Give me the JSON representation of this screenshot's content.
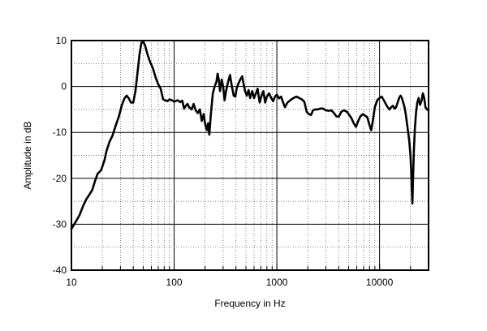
{
  "chart_data": {
    "type": "line",
    "title": "",
    "xlabel": "Frequency in Hz",
    "ylabel": "Amplitude in dB",
    "xscale": "log",
    "xlim": [
      10,
      30000
    ],
    "ylim": [
      -40,
      10
    ],
    "grid": true,
    "x_ticks": [
      {
        "value": 10,
        "label": "10"
      },
      {
        "value": 100,
        "label": "100"
      },
      {
        "value": 1000,
        "label": "1000"
      },
      {
        "value": 10000,
        "label": "10000"
      }
    ],
    "y_ticks": [
      {
        "value": 10,
        "label": "10"
      },
      {
        "value": 0,
        "label": "0"
      },
      {
        "value": -10,
        "label": "-10"
      },
      {
        "value": -20,
        "label": "-20"
      },
      {
        "value": -30,
        "label": "-30"
      },
      {
        "value": -40,
        "label": "-40"
      }
    ],
    "series": [
      {
        "color": "#000000",
        "points": [
          [
            10,
            -31
          ],
          [
            11,
            -29.5
          ],
          [
            12,
            -28
          ],
          [
            13,
            -26
          ],
          [
            14,
            -24.5
          ],
          [
            15,
            -23.5
          ],
          [
            16,
            -22.5
          ],
          [
            17,
            -20.5
          ],
          [
            18,
            -19
          ],
          [
            19.5,
            -18.2
          ],
          [
            21,
            -16
          ],
          [
            22,
            -14
          ],
          [
            23.5,
            -12
          ],
          [
            25,
            -10.8
          ],
          [
            27,
            -8.5
          ],
          [
            29,
            -6.5
          ],
          [
            31,
            -4
          ],
          [
            33,
            -2.5
          ],
          [
            34.5,
            -2
          ],
          [
            36,
            -2.5
          ],
          [
            38,
            -3.5
          ],
          [
            40,
            -3.5
          ],
          [
            42,
            -1
          ],
          [
            44,
            3
          ],
          [
            46,
            7
          ],
          [
            48,
            9.5
          ],
          [
            50,
            9.8
          ],
          [
            52,
            9
          ],
          [
            55,
            7
          ],
          [
            58,
            5.5
          ],
          [
            62,
            4
          ],
          [
            66,
            2
          ],
          [
            70,
            0.5
          ],
          [
            74,
            -0.5
          ],
          [
            78,
            -2.8
          ],
          [
            82,
            -3
          ],
          [
            86,
            -3.2
          ],
          [
            90,
            -2.8
          ],
          [
            95,
            -3
          ],
          [
            100,
            -3.3
          ],
          [
            108,
            -3
          ],
          [
            115,
            -3.4
          ],
          [
            120,
            -3.1
          ],
          [
            125,
            -4.8
          ],
          [
            130,
            -4.2
          ],
          [
            135,
            -3.8
          ],
          [
            140,
            -4.5
          ],
          [
            148,
            -5
          ],
          [
            155,
            -3.8
          ],
          [
            162,
            -5.2
          ],
          [
            170,
            -5.8
          ],
          [
            178,
            -5
          ],
          [
            186,
            -7.5
          ],
          [
            194,
            -6
          ],
          [
            200,
            -8
          ],
          [
            208,
            -9.5
          ],
          [
            214,
            -8
          ],
          [
            220,
            -10.5
          ],
          [
            228,
            -6
          ],
          [
            238,
            -1.5
          ],
          [
            248,
            0
          ],
          [
            258,
            1
          ],
          [
            265,
            2.8
          ],
          [
            272,
            1.5
          ],
          [
            280,
            -1
          ],
          [
            290,
            1.5
          ],
          [
            300,
            0
          ],
          [
            310,
            -3
          ],
          [
            320,
            -1
          ],
          [
            335,
            1
          ],
          [
            350,
            2.5
          ],
          [
            365,
            0
          ],
          [
            380,
            -2
          ],
          [
            395,
            -2.2
          ],
          [
            405,
            -0.5
          ],
          [
            420,
            0.5
          ],
          [
            440,
            1.5
          ],
          [
            460,
            2.2
          ],
          [
            475,
            0.5
          ],
          [
            490,
            -1
          ],
          [
            510,
            -2
          ],
          [
            530,
            -0.8
          ],
          [
            550,
            -2.5
          ],
          [
            575,
            -1
          ],
          [
            600,
            -2.5
          ],
          [
            625,
            -1.5
          ],
          [
            650,
            -0.5
          ],
          [
            680,
            -3.5
          ],
          [
            710,
            -2
          ],
          [
            740,
            -1
          ],
          [
            770,
            -3.5
          ],
          [
            800,
            -2.2
          ],
          [
            840,
            -1.5
          ],
          [
            880,
            -2.5
          ],
          [
            920,
            -3.2
          ],
          [
            960,
            -2.2
          ],
          [
            1000,
            -1.8
          ],
          [
            1050,
            -2.6
          ],
          [
            1100,
            -2.2
          ],
          [
            1150,
            -3.5
          ],
          [
            1200,
            -4.5
          ],
          [
            1270,
            -3.5
          ],
          [
            1350,
            -3
          ],
          [
            1450,
            -2.5
          ],
          [
            1550,
            -2.2
          ],
          [
            1650,
            -2.5
          ],
          [
            1750,
            -2.8
          ],
          [
            1850,
            -3.3
          ],
          [
            1950,
            -5.5
          ],
          [
            2050,
            -6
          ],
          [
            2150,
            -6.2
          ],
          [
            2250,
            -5.2
          ],
          [
            2350,
            -5
          ],
          [
            2500,
            -5
          ],
          [
            2650,
            -4.8
          ],
          [
            2800,
            -4.8
          ],
          [
            3000,
            -5.2
          ],
          [
            3200,
            -5.3
          ],
          [
            3400,
            -5.2
          ],
          [
            3600,
            -5.8
          ],
          [
            3800,
            -6.5
          ],
          [
            4000,
            -6.6
          ],
          [
            4250,
            -5.5
          ],
          [
            4500,
            -5.2
          ],
          [
            4800,
            -5.5
          ],
          [
            5000,
            -6
          ],
          [
            5300,
            -6.8
          ],
          [
            5600,
            -8
          ],
          [
            5900,
            -8.8
          ],
          [
            6200,
            -7.5
          ],
          [
            6500,
            -6.5
          ],
          [
            6900,
            -6
          ],
          [
            7200,
            -6.3
          ],
          [
            7600,
            -6.7
          ],
          [
            8000,
            -8.5
          ],
          [
            8300,
            -9.5
          ],
          [
            8600,
            -7.5
          ],
          [
            9000,
            -4.5
          ],
          [
            9500,
            -3
          ],
          [
            10000,
            -2.5
          ],
          [
            10500,
            -2.2
          ],
          [
            11000,
            -3
          ],
          [
            11500,
            -3.8
          ],
          [
            12000,
            -4.5
          ],
          [
            12500,
            -5
          ],
          [
            13000,
            -4.5
          ],
          [
            13500,
            -4.2
          ],
          [
            14000,
            -4.8
          ],
          [
            14500,
            -4.5
          ],
          [
            15000,
            -3.5
          ],
          [
            15500,
            -2.5
          ],
          [
            16000,
            -2
          ],
          [
            16500,
            -2.5
          ],
          [
            17000,
            -3.5
          ],
          [
            17500,
            -4.5
          ],
          [
            18000,
            -6
          ],
          [
            18500,
            -8
          ],
          [
            19000,
            -10
          ],
          [
            19500,
            -12
          ],
          [
            20000,
            -15
          ],
          [
            20300,
            -18
          ],
          [
            20600,
            -22
          ],
          [
            20900,
            -25.5
          ],
          [
            21200,
            -20
          ],
          [
            21600,
            -14
          ],
          [
            22100,
            -9
          ],
          [
            22700,
            -5.5
          ],
          [
            23300,
            -3.5
          ],
          [
            24000,
            -2.5
          ],
          [
            24800,
            -4
          ],
          [
            25600,
            -3.2
          ],
          [
            26400,
            -1.5
          ],
          [
            27200,
            -2.5
          ],
          [
            28000,
            -4.5
          ],
          [
            29000,
            -5
          ],
          [
            30000,
            -5.2
          ]
        ]
      }
    ]
  }
}
